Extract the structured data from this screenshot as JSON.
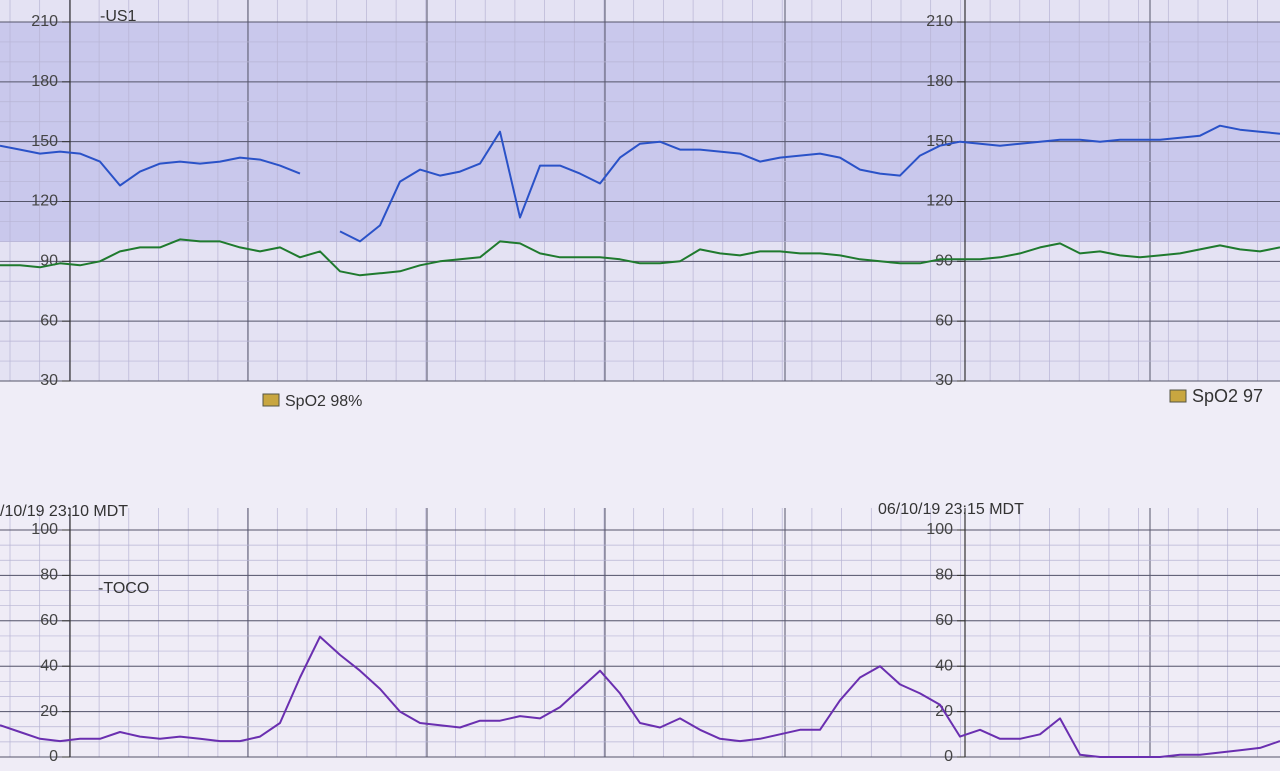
{
  "chart_data": [
    {
      "type": "line",
      "title": "-US1",
      "ylim": [
        30,
        210
      ],
      "yticks": [
        30,
        60,
        90,
        120,
        150,
        180,
        210
      ],
      "annotations": [
        "SpO2  98%",
        "SpO2  97"
      ],
      "series": [
        {
          "color": "#2a52c8",
          "values": [
            148,
            146,
            144,
            145,
            144,
            140,
            128,
            135,
            139,
            140,
            139,
            140,
            142,
            141,
            138,
            134,
            null,
            105,
            100,
            108,
            130,
            136,
            133,
            135,
            139,
            155,
            112,
            138,
            138,
            134,
            129,
            142,
            149,
            150,
            146,
            146,
            145,
            144,
            140,
            142,
            143,
            144,
            142,
            136,
            134,
            133,
            143,
            148,
            150,
            149,
            148,
            149,
            150,
            151,
            151,
            150,
            151,
            151,
            151,
            152,
            153,
            158,
            156,
            155,
            154
          ]
        },
        {
          "color": "#1f7a2e",
          "values": [
            88,
            88,
            87,
            89,
            88,
            90,
            95,
            97,
            97,
            101,
            100,
            100,
            97,
            95,
            97,
            92,
            95,
            85,
            83,
            84,
            85,
            88,
            90,
            91,
            92,
            100,
            99,
            94,
            92,
            92,
            92,
            91,
            89,
            89,
            90,
            96,
            94,
            93,
            95,
            95,
            94,
            94,
            93,
            91,
            90,
            89,
            89,
            91,
            91,
            91,
            92,
            94,
            97,
            99,
            94,
            95,
            93,
            92,
            93,
            94,
            96,
            98,
            96,
            95,
            97
          ]
        }
      ]
    },
    {
      "type": "line",
      "title": "-TOCO",
      "ylim": [
        0,
        100
      ],
      "yticks": [
        0,
        20,
        40,
        60,
        80,
        100
      ],
      "annotations": [
        "/10/19 23:10 MDT",
        "06/10/19 23:15 MDT"
      ],
      "series": [
        {
          "color": "#6a2fb0",
          "values": [
            14,
            11,
            8,
            7,
            8,
            8,
            11,
            9,
            8,
            9,
            8,
            7,
            7,
            9,
            15,
            35,
            53,
            45,
            38,
            30,
            20,
            15,
            14,
            13,
            16,
            16,
            18,
            17,
            22,
            30,
            38,
            28,
            15,
            13,
            17,
            12,
            8,
            7,
            8,
            10,
            12,
            12,
            25,
            35,
            40,
            32,
            28,
            23,
            9,
            12,
            8,
            8,
            10,
            17,
            1,
            0,
            0,
            0,
            0,
            1,
            1,
            2,
            3,
            4,
            7
          ]
        }
      ]
    }
  ]
}
